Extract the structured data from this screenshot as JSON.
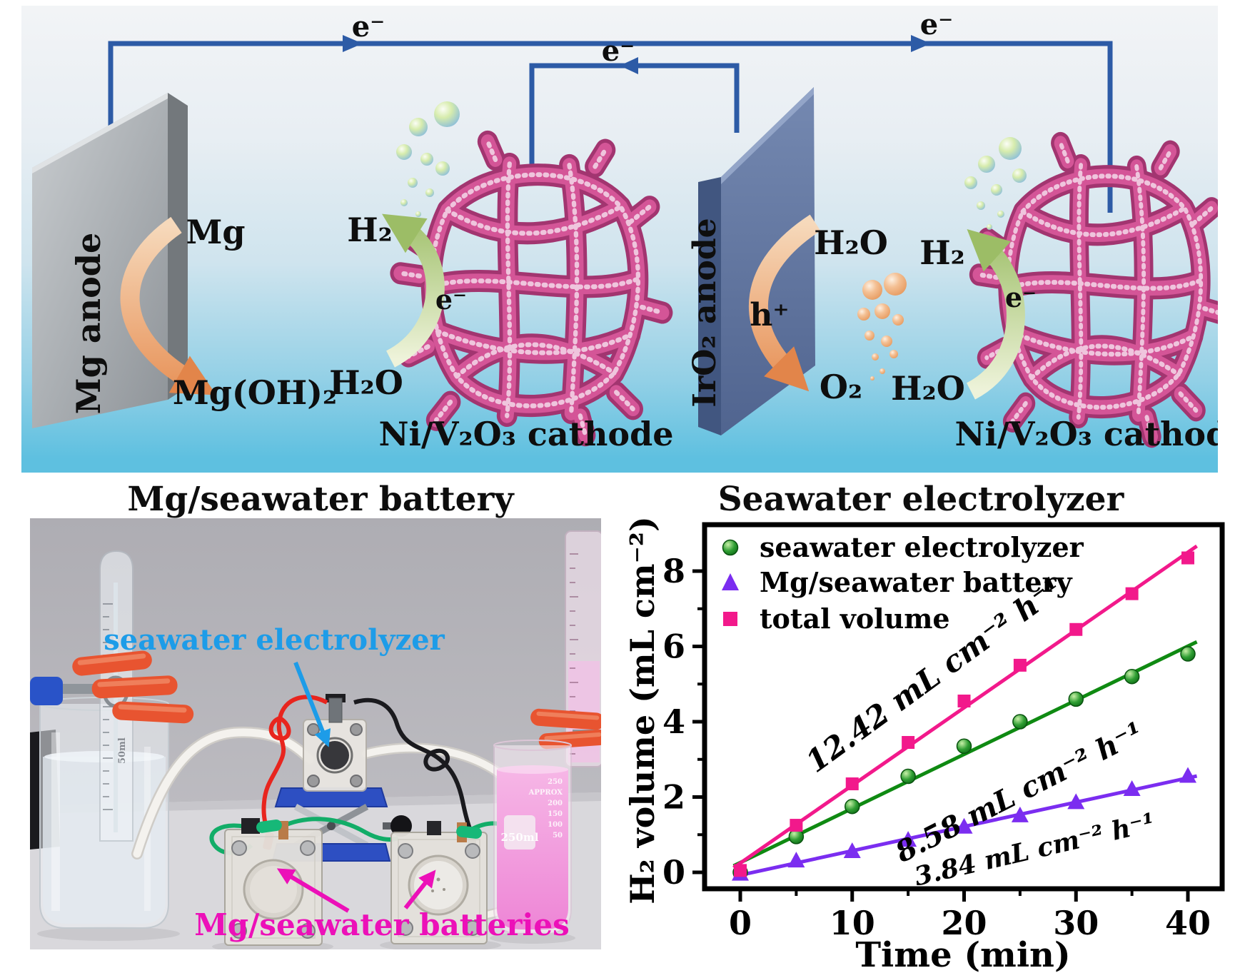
{
  "schematic": {
    "species": {
      "electron": "e⁻",
      "mg": "Mg",
      "mg_hydroxide": "Mg(OH)₂",
      "water": "H₂O",
      "hydrogen": "H₂",
      "oxygen": "O₂",
      "proton": "h⁺"
    },
    "labels": {
      "mg_anode": "Mg anode",
      "iro2_anode": "IrO₂ anode",
      "cathode": "Ni/V₂O₃ cathode"
    },
    "colors": {
      "wire_blue": "#2d5ba6",
      "cathode_pink": "#d45597",
      "mg_anode_gray": "#a7acb0",
      "iro2_anode_blue": "#5a6e99",
      "arrow_orange": "#e8955f",
      "arrow_green": "#abc878"
    }
  },
  "captions": {
    "left": "Mg/seawater battery",
    "right": "Seawater electrolyzer"
  },
  "photo": {
    "labels": {
      "electrolyzer": "seawater electrolyzer",
      "batteries": "Mg/seawater batteries"
    },
    "label_colors": {
      "electrolyzer": "#1d9ce8",
      "batteries": "#ec10b8"
    },
    "markings": {
      "beaker_volume": "250ml",
      "tube_volume": "50ml",
      "cylinder_graduations": [
        "250",
        "APPROX",
        "200",
        "150",
        "100",
        "50"
      ]
    }
  },
  "chart_data": {
    "type": "line",
    "title": "",
    "xlabel": "Time (min)",
    "ylabel": "H₂ volume (mL cm⁻²)",
    "x": [
      0,
      5,
      10,
      15,
      20,
      25,
      30,
      35,
      40
    ],
    "xticks": [
      0,
      10,
      20,
      30,
      40
    ],
    "yticks": [
      0,
      2,
      4,
      6,
      8
    ],
    "xlim": [
      -3,
      43
    ],
    "ylim": [
      -0.45,
      9.25
    ],
    "grid": false,
    "legend_position": "top-left",
    "series": [
      {
        "name": "seawater electrolyzer",
        "marker": "circle",
        "color": "#0f8a12",
        "values": [
          0,
          0.95,
          1.75,
          2.55,
          3.35,
          4.0,
          4.6,
          5.2,
          5.8
        ],
        "rate_label": "8.58 mL cm⁻² h⁻¹"
      },
      {
        "name": "Mg/seawater battery",
        "marker": "triangle",
        "color": "#7b2df0",
        "values": [
          -0.05,
          0.3,
          0.55,
          0.85,
          1.2,
          1.5,
          1.85,
          2.2,
          2.55
        ],
        "rate_label": "3.84 mL cm⁻² h⁻¹"
      },
      {
        "name": "total volume",
        "marker": "square",
        "color": "#f2198b",
        "values": [
          0.05,
          1.25,
          2.35,
          3.45,
          4.55,
          5.5,
          6.45,
          7.4,
          8.35
        ],
        "rate_label": "12.42 mL cm⁻² h⁻¹"
      }
    ]
  }
}
